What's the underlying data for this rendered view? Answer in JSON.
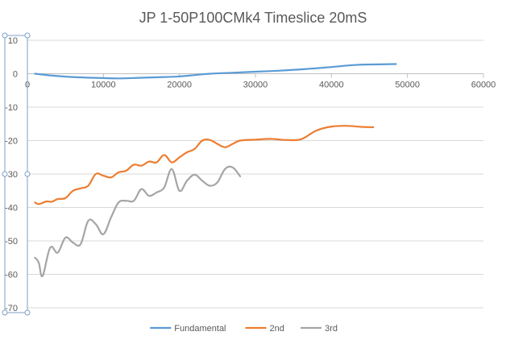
{
  "chart_data": {
    "type": "line",
    "title": "JP 1-50P100CMk4 Timeslice 20mS",
    "xlabel": "",
    "ylabel": "",
    "xlim": [
      0,
      60000
    ],
    "ylim": [
      -70,
      10
    ],
    "x_ticks": [
      0,
      10000,
      20000,
      30000,
      40000,
      50000,
      60000
    ],
    "y_ticks": [
      10,
      0,
      -10,
      -20,
      -30,
      -40,
      -50,
      -60,
      -70
    ],
    "grid": "horizontal",
    "legend_position": "bottom",
    "series": [
      {
        "name": "Fundamental",
        "color": "#5b9bd5",
        "points": [
          [
            1000,
            0
          ],
          [
            3000,
            -0.5
          ],
          [
            6000,
            -1
          ],
          [
            10000,
            -1.3
          ],
          [
            12000,
            -1.4
          ],
          [
            15000,
            -1.2
          ],
          [
            18000,
            -1
          ],
          [
            20000,
            -0.8
          ],
          [
            22000,
            -0.4
          ],
          [
            24000,
            0
          ],
          [
            27000,
            0.3
          ],
          [
            30000,
            0.6
          ],
          [
            33000,
            0.9
          ],
          [
            36000,
            1.3
          ],
          [
            40000,
            2
          ],
          [
            43000,
            2.6
          ],
          [
            46000,
            2.8
          ],
          [
            48500,
            2.9
          ]
        ]
      },
      {
        "name": "2nd",
        "color": "#ed7d31",
        "points": [
          [
            1000,
            -38.5
          ],
          [
            1500,
            -39
          ],
          [
            2500,
            -38.2
          ],
          [
            3200,
            -38.3
          ],
          [
            4000,
            -37.5
          ],
          [
            5000,
            -37.2
          ],
          [
            6000,
            -35
          ],
          [
            7000,
            -34.3
          ],
          [
            8000,
            -33.5
          ],
          [
            9000,
            -30
          ],
          [
            10000,
            -30.5
          ],
          [
            11000,
            -31
          ],
          [
            12000,
            -29.5
          ],
          [
            13000,
            -29
          ],
          [
            14000,
            -27.2
          ],
          [
            15000,
            -27.5
          ],
          [
            16000,
            -26.3
          ],
          [
            17000,
            -26.5
          ],
          [
            18000,
            -24.3
          ],
          [
            19000,
            -26.5
          ],
          [
            20000,
            -25
          ],
          [
            21000,
            -23.5
          ],
          [
            22000,
            -22.5
          ],
          [
            23000,
            -20
          ],
          [
            24000,
            -19.8
          ],
          [
            25000,
            -21
          ],
          [
            26000,
            -22
          ],
          [
            27000,
            -21
          ],
          [
            28000,
            -20
          ],
          [
            30000,
            -19.7
          ],
          [
            32000,
            -19.5
          ],
          [
            34000,
            -19.8
          ],
          [
            36000,
            -19.6
          ],
          [
            38000,
            -17
          ],
          [
            40000,
            -15.8
          ],
          [
            42000,
            -15.6
          ],
          [
            44000,
            -15.9
          ],
          [
            45500,
            -16
          ]
        ]
      },
      {
        "name": "3rd",
        "color": "#a5a5a5",
        "points": [
          [
            1000,
            -55
          ],
          [
            1500,
            -56.5
          ],
          [
            2000,
            -60.5
          ],
          [
            3000,
            -52
          ],
          [
            4000,
            -53.5
          ],
          [
            5000,
            -49
          ],
          [
            6000,
            -50.5
          ],
          [
            7000,
            -51
          ],
          [
            8000,
            -44
          ],
          [
            9000,
            -45
          ],
          [
            10000,
            -48
          ],
          [
            11000,
            -43
          ],
          [
            12000,
            -38.5
          ],
          [
            13000,
            -38
          ],
          [
            14000,
            -38
          ],
          [
            15000,
            -34.5
          ],
          [
            16000,
            -36.5
          ],
          [
            17000,
            -35.5
          ],
          [
            18000,
            -34
          ],
          [
            19000,
            -28.5
          ],
          [
            20000,
            -35
          ],
          [
            21000,
            -32
          ],
          [
            22000,
            -30.2
          ],
          [
            23000,
            -32
          ],
          [
            24000,
            -33.5
          ],
          [
            25000,
            -32.5
          ],
          [
            26000,
            -28.5
          ],
          [
            27000,
            -28
          ],
          [
            28000,
            -30.7
          ]
        ]
      }
    ]
  }
}
